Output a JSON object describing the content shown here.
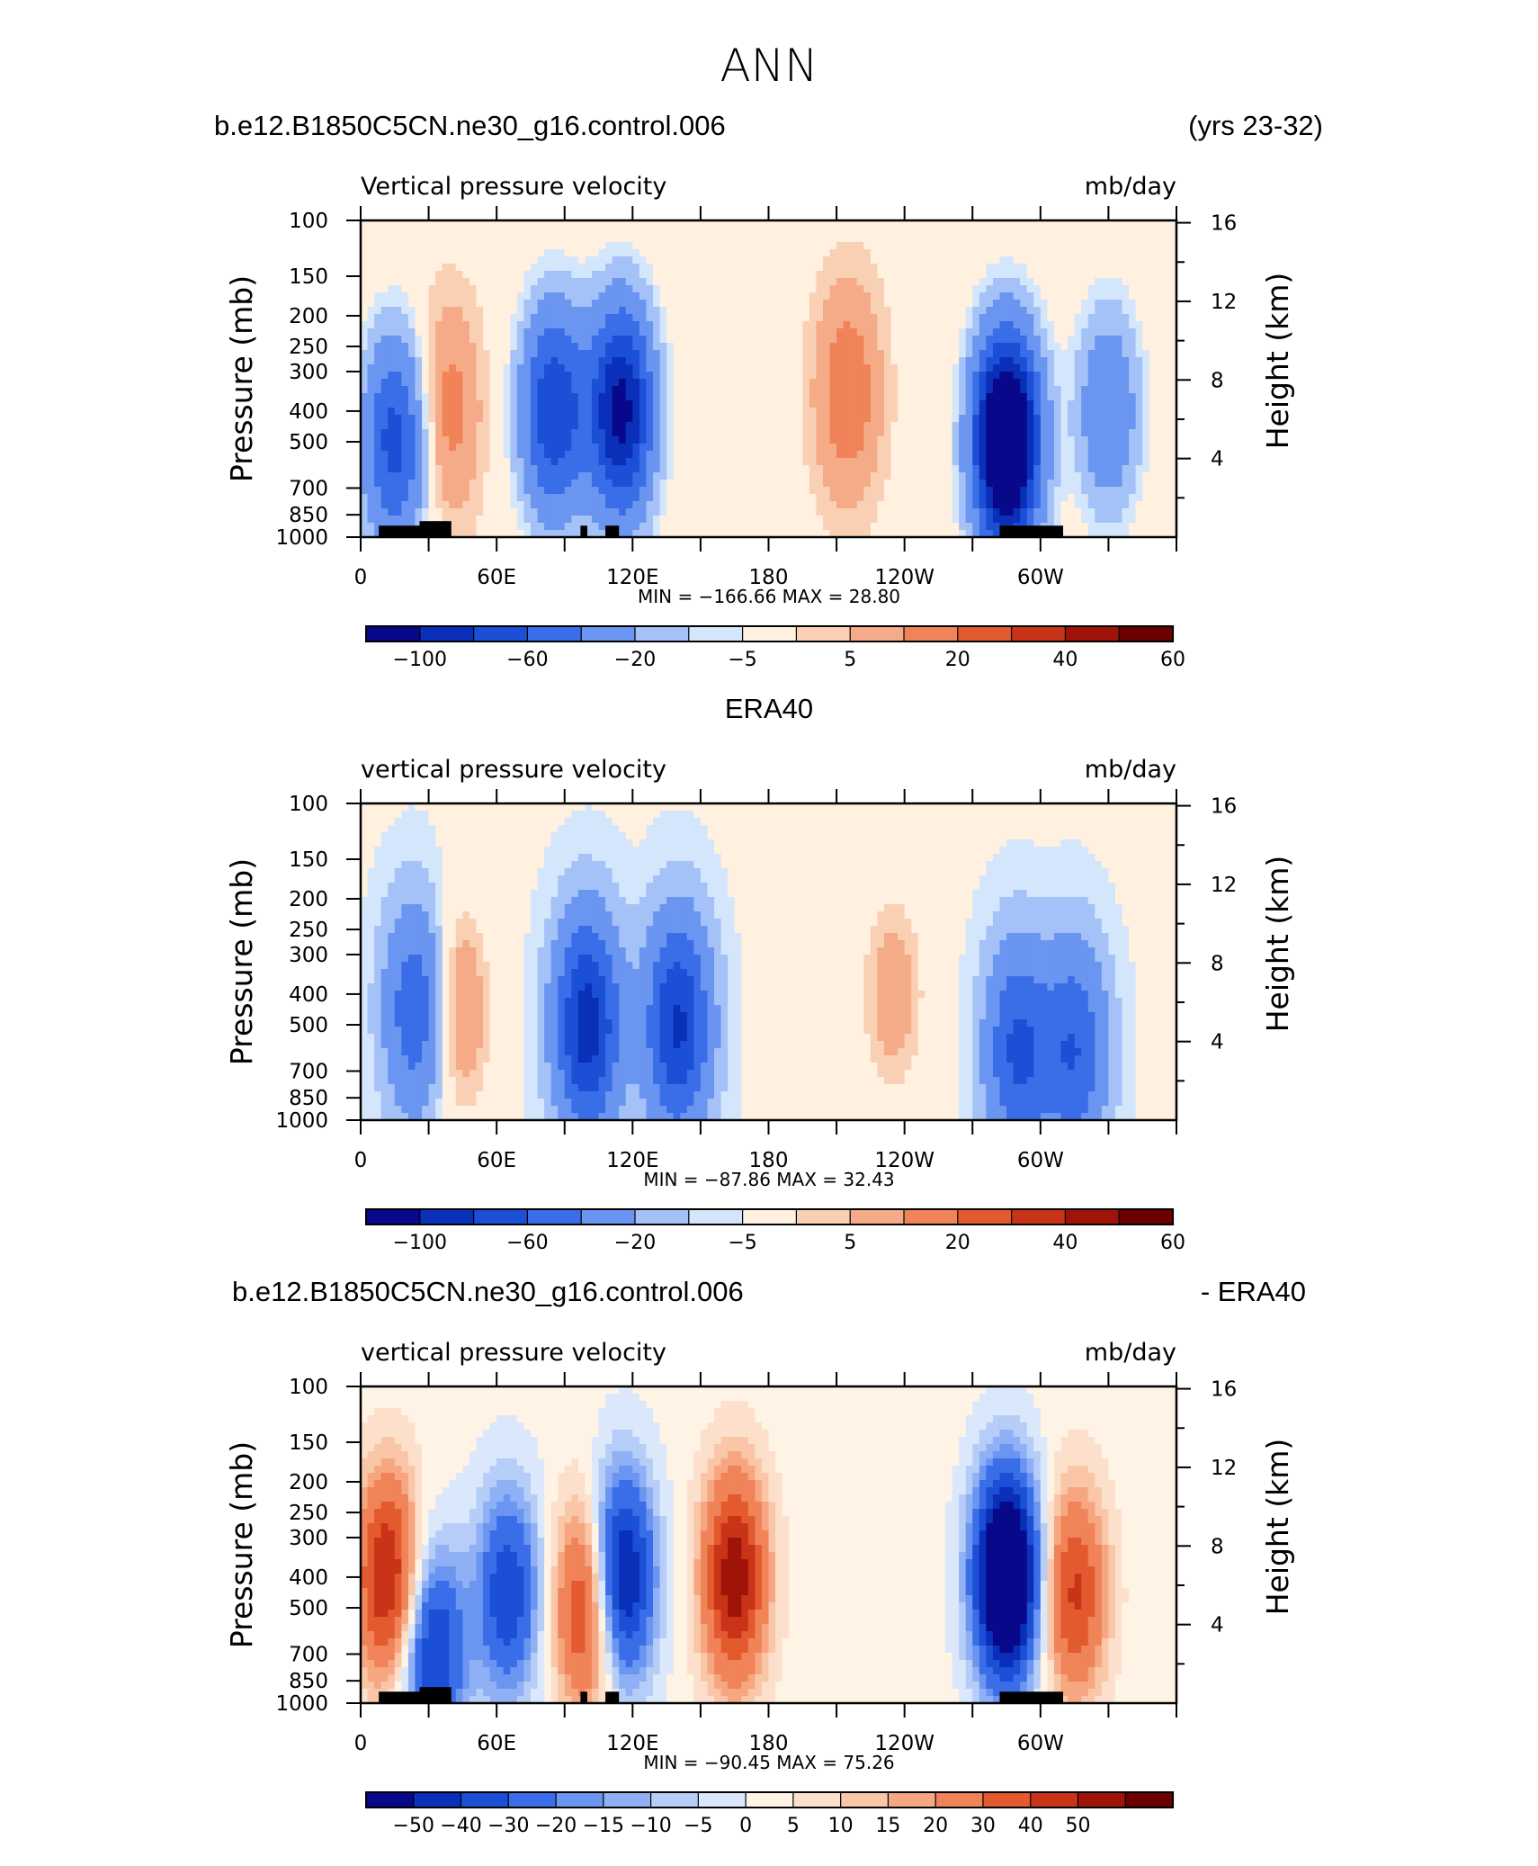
{
  "figure_title": "ANN",
  "colors": {
    "omega_levels_ctrl": [
      "#08088a",
      "#0a2fb8",
      "#1a4fd6",
      "#3a6ee8",
      "#6a95f0",
      "#a4c2f7",
      "#d4e6fb",
      "#fff0e0",
      "#fad0b5",
      "#f6ab88",
      "#f08358",
      "#e35a2e",
      "#c93418",
      "#a01309",
      "#6b0000"
    ],
    "diff_levels": [
      "#08088a",
      "#0a2fb8",
      "#1a4fd6",
      "#3a6ee8",
      "#6a95f0",
      "#8fb0f4",
      "#b6cdf8",
      "#dbe8fc",
      "#fff3e6",
      "#fde0cc",
      "#fac6a8",
      "#f6a680",
      "#f08358",
      "#e35a2e",
      "#c93418",
      "#a01309",
      "#6b0000"
    ],
    "land_mask": "#000000"
  },
  "chart_data": [
    {
      "type": "heatmap",
      "title_left": "b.e12.B1850C5CN.ne30_g16.control.006",
      "title_right": "(yrs 23-32)",
      "variable_label": "Vertical pressure velocity",
      "units_label": "mb/day",
      "ylabel": "Pressure (mb)",
      "y2label": "Height (km)",
      "x_ticks": [
        "0",
        "60E",
        "120E",
        "180",
        "120W",
        "60W"
      ],
      "y_ticks": [
        "100",
        "150",
        "200",
        "250",
        "300",
        "400",
        "500",
        "700",
        "850",
        "1000"
      ],
      "y2_ticks": [
        "16",
        "12",
        "8",
        "4"
      ],
      "stats": "MIN = −166.66   MAX =   28.80",
      "colorbar_labels": [
        "−100",
        "−60",
        "−20",
        "−5",
        "5",
        "20",
        "40",
        "60"
      ],
      "land_mask": true,
      "x_range_deg_east": [
        0,
        360
      ],
      "y_range_mb": [
        100,
        1000
      ],
      "value_range": [
        -166.66,
        28.8
      ],
      "pattern": [
        {
          "lon": 15,
          "p": 500,
          "value": -70
        },
        {
          "lon": 38,
          "p": 400,
          "value": 25
        },
        {
          "lon": 85,
          "p": 400,
          "value": -80
        },
        {
          "lon": 115,
          "p": 400,
          "value": -110
        },
        {
          "lon": 215,
          "p": 350,
          "value": 28
        },
        {
          "lon": 285,
          "p": 500,
          "value": -166
        },
        {
          "lon": 330,
          "p": 400,
          "value": -40
        }
      ]
    },
    {
      "type": "heatmap",
      "title_left": "",
      "title_center": "ERA40",
      "title_right": "",
      "variable_label": "vertical pressure velocity",
      "units_label": "mb/day",
      "ylabel": "Pressure (mb)",
      "y2label": "Height (km)",
      "x_ticks": [
        "0",
        "60E",
        "120E",
        "180",
        "120W",
        "60W"
      ],
      "y_ticks": [
        "100",
        "150",
        "200",
        "250",
        "300",
        "400",
        "500",
        "700",
        "850",
        "1000"
      ],
      "y2_ticks": [
        "16",
        "12",
        "8",
        "4"
      ],
      "stats": "MIN = −87.86   MAX =   32.43",
      "colorbar_labels": [
        "−100",
        "−60",
        "−20",
        "−5",
        "5",
        "20",
        "40",
        "60"
      ],
      "land_mask": false,
      "x_range_deg_east": [
        0,
        360
      ],
      "y_range_mb": [
        100,
        1000
      ],
      "value_range": [
        -87.86,
        32.43
      ],
      "pattern": [
        {
          "lon": 25,
          "p": 450,
          "value": -55
        },
        {
          "lon": 42,
          "p": 450,
          "value": 30
        },
        {
          "lon": 100,
          "p": 500,
          "value": -88
        },
        {
          "lon": 140,
          "p": 500,
          "value": -80
        },
        {
          "lon": 235,
          "p": 400,
          "value": 20
        },
        {
          "lon": 290,
          "p": 600,
          "value": -60
        },
        {
          "lon": 315,
          "p": 600,
          "value": -55
        }
      ]
    },
    {
      "type": "heatmap",
      "title_left": "b.e12.B1850C5CN.ne30_g16.control.006",
      "title_right": "- ERA40",
      "variable_label": "vertical pressure velocity",
      "units_label": "mb/day",
      "ylabel": "Pressure (mb)",
      "y2label": "Height (km)",
      "x_ticks": [
        "0",
        "60E",
        "120E",
        "180",
        "120W",
        "60W"
      ],
      "y_ticks": [
        "100",
        "150",
        "200",
        "250",
        "300",
        "400",
        "500",
        "700",
        "850",
        "1000"
      ],
      "y2_ticks": [
        "16",
        "12",
        "8",
        "4"
      ],
      "stats": "MIN = −90.45   MAX =   75.26",
      "colorbar_labels": [
        "−50",
        "−40",
        "−30",
        "−20",
        "−15",
        "−10",
        "−5",
        "0",
        "5",
        "10",
        "15",
        "20",
        "30",
        "40",
        "50"
      ],
      "land_mask": true,
      "x_range_deg_east": [
        0,
        360
      ],
      "y_range_mb": [
        100,
        1000
      ],
      "value_range": [
        -90.45,
        75.26
      ],
      "pattern": [
        {
          "lon": 12,
          "p": 400,
          "value": 50
        },
        {
          "lon": 32,
          "p": 700,
          "value": -45
        },
        {
          "lon": 65,
          "p": 450,
          "value": -40
        },
        {
          "lon": 100,
          "p": 500,
          "value": 45
        },
        {
          "lon": 115,
          "p": 400,
          "value": -60
        },
        {
          "lon": 165,
          "p": 400,
          "value": 55
        },
        {
          "lon": 285,
          "p": 400,
          "value": -90
        },
        {
          "lon": 315,
          "p": 450,
          "value": 40
        }
      ]
    }
  ]
}
